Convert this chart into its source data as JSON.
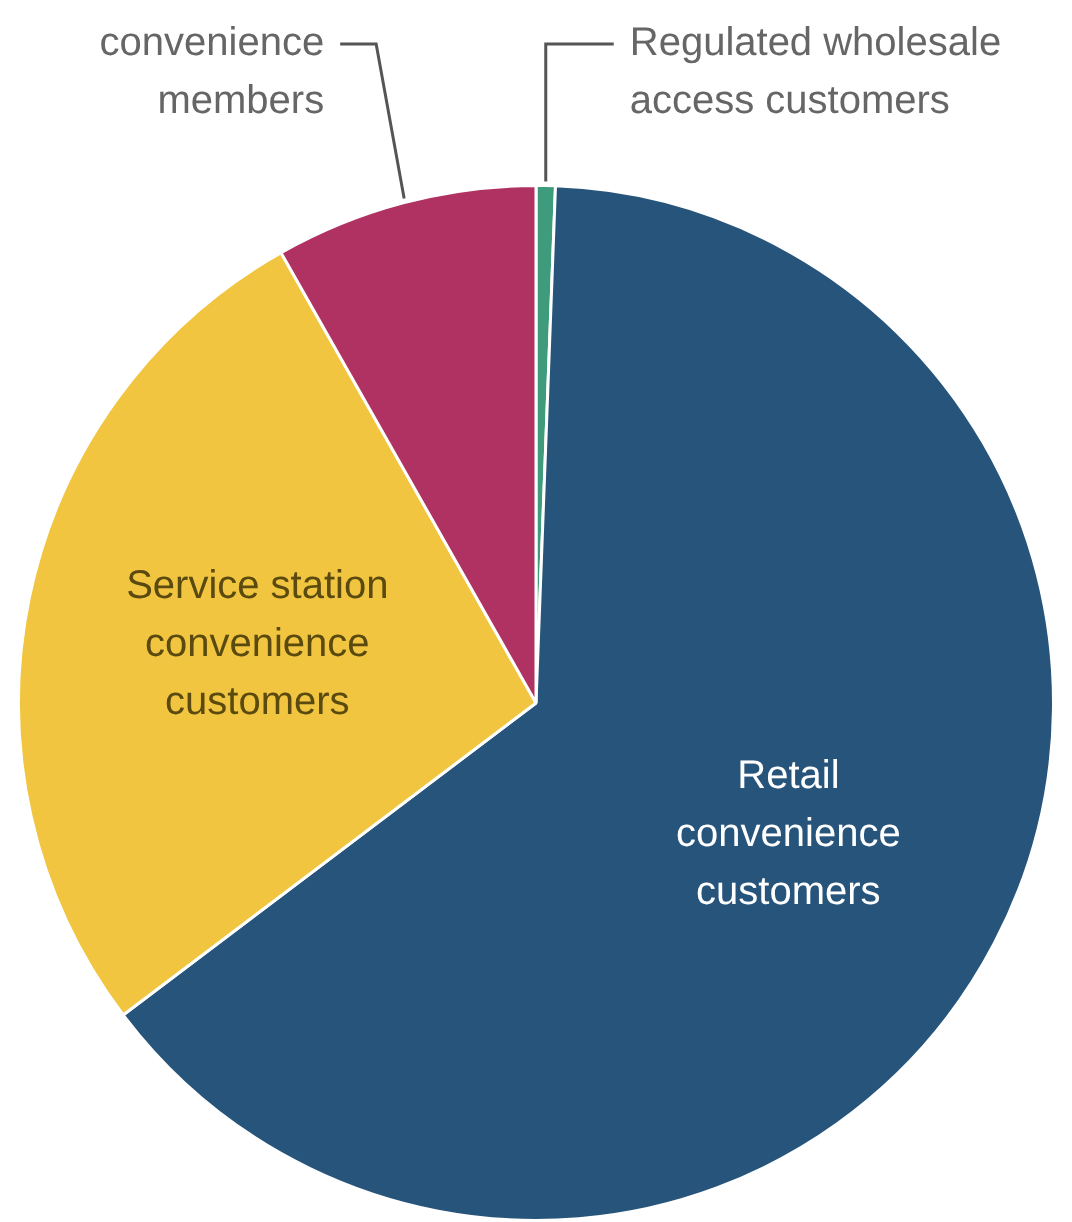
{
  "chart_data": {
    "type": "pie",
    "categories": [
      "Regulated wholesale access customers",
      "Retail convenience customers",
      "Service station convenience customers",
      "convenience members"
    ],
    "values": [
      0.6,
      64.1,
      27.1,
      8.2
    ],
    "colors": [
      "#3e9b7c",
      "#27547b",
      "#f1c53f",
      "#b03262"
    ]
  }
}
